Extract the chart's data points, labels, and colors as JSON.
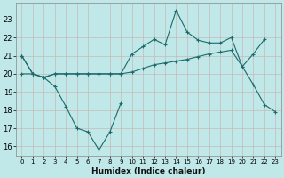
{
  "xlabel": "Humidex (Indice chaleur)",
  "background_color": "#c0e8e8",
  "grid_color_h": "#c8b8b8",
  "grid_color_v": "#c8b8b8",
  "line_color": "#1a6b6b",
  "line1_x": [
    0,
    1,
    2,
    3,
    4,
    5,
    6,
    7,
    8,
    9
  ],
  "line1_y": [
    21.0,
    20.0,
    19.8,
    19.3,
    18.2,
    17.0,
    16.8,
    15.8,
    16.8,
    18.4
  ],
  "line2_x": [
    0,
    1,
    2,
    3,
    4,
    5,
    6,
    7,
    8,
    9,
    10,
    11,
    12,
    13,
    14,
    15,
    16,
    17,
    18,
    19,
    20,
    21,
    22,
    23
  ],
  "line2_y": [
    20.0,
    20.0,
    19.8,
    20.0,
    20.0,
    20.0,
    20.0,
    20.0,
    20.0,
    20.0,
    20.1,
    20.3,
    20.5,
    20.6,
    20.7,
    20.8,
    20.95,
    21.1,
    21.2,
    21.3,
    20.4,
    19.4,
    18.3,
    17.9
  ],
  "line3_x": [
    0,
    1,
    2,
    3,
    4,
    5,
    6,
    7,
    8,
    9,
    10,
    11,
    12,
    13,
    14,
    15,
    16,
    17,
    18,
    19,
    20,
    21,
    22
  ],
  "line3_y": [
    21.0,
    20.0,
    19.8,
    20.0,
    20.0,
    20.0,
    20.0,
    20.0,
    20.0,
    20.0,
    21.1,
    21.5,
    21.9,
    21.6,
    23.5,
    22.3,
    21.85,
    21.7,
    21.7,
    22.0,
    20.4,
    21.1,
    21.9
  ],
  "ylim": [
    15.5,
    23.9
  ],
  "yticks": [
    16,
    17,
    18,
    19,
    20,
    21,
    22,
    23
  ],
  "xticks": [
    0,
    1,
    2,
    3,
    4,
    5,
    6,
    7,
    8,
    9,
    10,
    11,
    12,
    13,
    14,
    15,
    16,
    17,
    18,
    19,
    20,
    21,
    22,
    23
  ],
  "figsize": [
    3.2,
    2.0
  ],
  "dpi": 100
}
